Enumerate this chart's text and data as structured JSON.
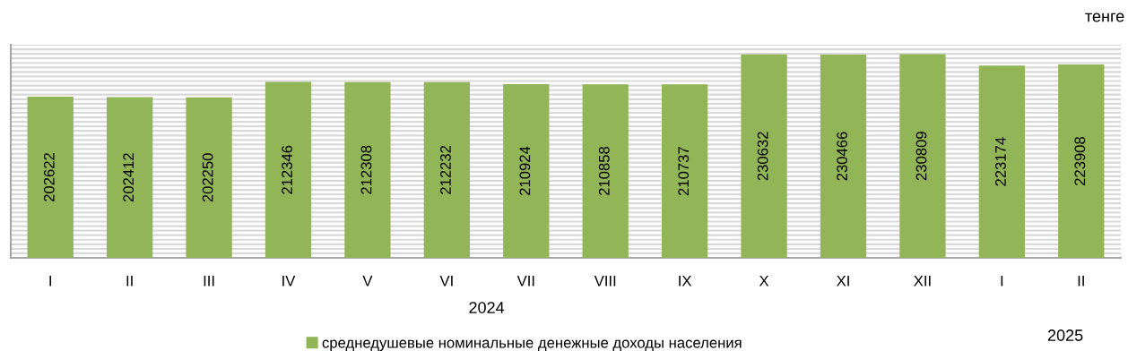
{
  "chart_data": {
    "type": "bar",
    "categories": [
      "I",
      "II",
      "III",
      "IV",
      "V",
      "VI",
      "VII",
      "VIII",
      "IX",
      "X",
      "XI",
      "XII",
      "I",
      "II"
    ],
    "series": [
      {
        "name": "среднедушевые номинальные денежные доходы населения",
        "color": "#92b558",
        "values": [
          202622,
          202412,
          202250,
          212346,
          212308,
          212232,
          210924,
          210858,
          210737,
          230632,
          230466,
          230809,
          223174,
          223908
        ]
      }
    ],
    "data_labels": true,
    "ylim": [
      96000,
      237000
    ],
    "yticks": [
      {
        "value": 96000,
        "label": null
      },
      {
        "value": 99000,
        "label": null
      },
      {
        "value": 102000,
        "label": null
      },
      {
        "value": 105000,
        "label": null
      },
      {
        "value": 108000,
        "label": null
      },
      {
        "value": 111000,
        "label": null
      },
      {
        "value": 114000,
        "label": null
      },
      {
        "value": 117000,
        "label": null
      },
      {
        "value": 120000,
        "label": null
      },
      {
        "value": 123000,
        "label": null
      },
      {
        "value": 126000,
        "label": null
      },
      {
        "value": 129000,
        "label": null
      },
      {
        "value": 132000,
        "label": null
      },
      {
        "value": 135000,
        "label": null
      },
      {
        "value": 138000,
        "label": null
      },
      {
        "value": 141000,
        "label": null
      },
      {
        "value": 144000,
        "label": null
      },
      {
        "value": 147000,
        "label": null
      },
      {
        "value": 150000,
        "label": null
      },
      {
        "value": 153000,
        "label": null
      },
      {
        "value": 156000,
        "label": null
      },
      {
        "value": 159000,
        "label": null
      },
      {
        "value": 162000,
        "label": null
      },
      {
        "value": 165000,
        "label": null
      },
      {
        "value": 168000,
        "label": null
      },
      {
        "value": 171000,
        "label": null
      },
      {
        "value": 174000,
        "label": null
      },
      {
        "value": 177000,
        "label": null
      },
      {
        "value": 180000,
        "label": null
      },
      {
        "value": 183000,
        "label": null
      },
      {
        "value": 186000,
        "label": null
      },
      {
        "value": 189000,
        "label": null
      },
      {
        "value": 192000,
        "label": null
      },
      {
        "value": 195000,
        "label": null
      },
      {
        "value": 198000,
        "label": null
      },
      {
        "value": 201000,
        "label": null
      },
      {
        "value": 204000,
        "label": null
      },
      {
        "value": 207000,
        "label": null
      },
      {
        "value": 210000,
        "label": null
      },
      {
        "value": 213000,
        "label": null
      },
      {
        "value": 216000,
        "label": null
      },
      {
        "value": 219000,
        "label": null
      },
      {
        "value": 222000,
        "label": null
      },
      {
        "value": 225000,
        "label": null
      },
      {
        "value": 228000,
        "label": null
      },
      {
        "value": 231000,
        "label": null
      },
      {
        "value": 234000,
        "label": null
      },
      {
        "value": 237000,
        "label": null
      }
    ],
    "grid": "y",
    "legend": "bottom",
    "tick_labels": "x",
    "annotations": [
      "тенге",
      "2024",
      "2025"
    ]
  }
}
